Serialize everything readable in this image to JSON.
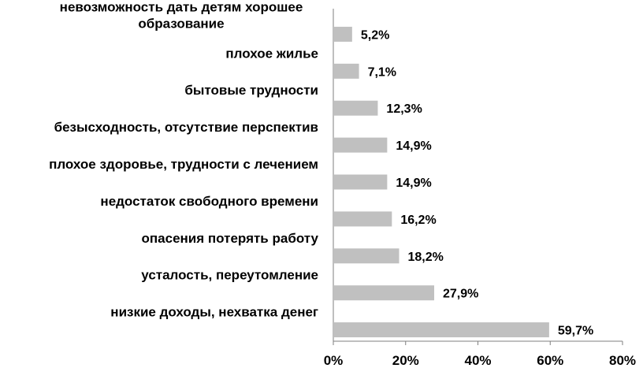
{
  "chart_data": {
    "type": "bar",
    "orientation": "horizontal",
    "categories": [
      "невозможность дать детям хорошее образование",
      "плохое жилье",
      "бытовые трудности",
      "безысходность, отсутствие перспектив",
      "плохое здоровье, трудности с лечением",
      "недостаток свободного времени",
      "опасения потерять работу",
      "усталость,  переутомление",
      "низкие доходы, нехватка денег"
    ],
    "category_lines": [
      [
        "невозможность дать детям хорошее",
        "образование"
      ],
      [
        "плохое жилье"
      ],
      [
        "бытовые трудности"
      ],
      [
        "безысходность, отсутствие перспектив"
      ],
      [
        "плохое здоровье, трудности с лечением"
      ],
      [
        "недостаток свободного времени"
      ],
      [
        "опасения потерять работу"
      ],
      [
        "усталость,  переутомление"
      ],
      [
        "низкие доходы, нехватка денег"
      ]
    ],
    "values": [
      5.2,
      7.1,
      12.3,
      14.9,
      14.9,
      16.2,
      18.2,
      27.9,
      59.7
    ],
    "value_labels": [
      "5,2%",
      "7,1%",
      "12,3%",
      "14,9%",
      "14,9%",
      "16,2%",
      "18,2%",
      "27,9%",
      "59,7%"
    ],
    "xlim": [
      0,
      80
    ],
    "x_ticks": [
      0,
      20,
      40,
      60,
      80
    ],
    "x_tick_labels": [
      "0%",
      "20%",
      "40%",
      "60%",
      "80%"
    ],
    "title": "",
    "xlabel": "",
    "ylabel": "",
    "grid": false,
    "legend": "none",
    "bar_color": "#c0c0c0",
    "axis_color": "#7f7f7f"
  }
}
